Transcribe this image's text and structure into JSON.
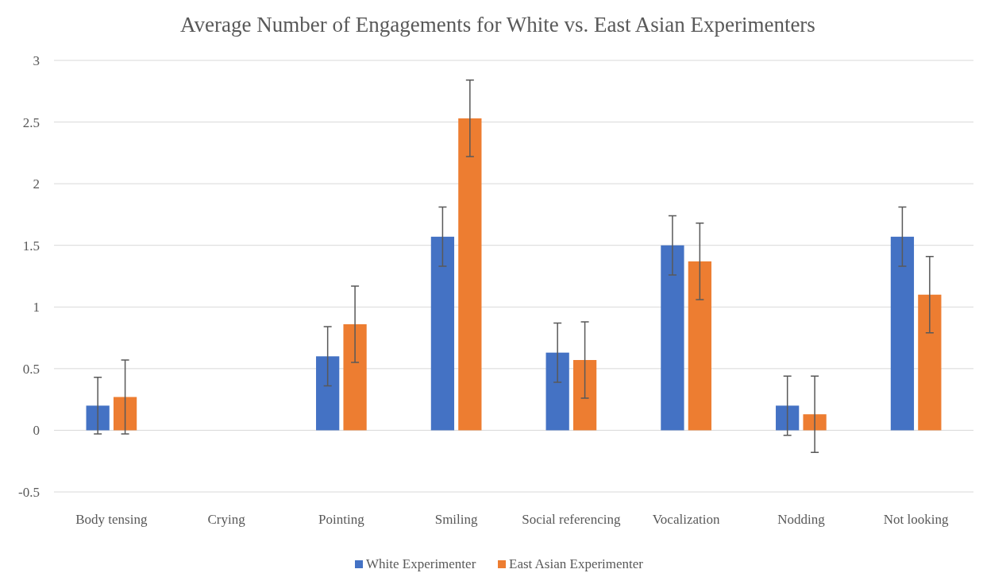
{
  "chart_data": {
    "type": "bar",
    "title": "Average Number of Engagements for White vs. East Asian Experimenters",
    "categories": [
      "Body tensing",
      "Crying",
      "Pointing",
      "Smiling",
      "Social referencing",
      "Vocalization",
      "Nodding",
      "Not looking"
    ],
    "series": [
      {
        "name": "White Experimenter",
        "color": "#4472c4",
        "values": [
          0.2,
          null,
          0.6,
          1.57,
          0.63,
          1.5,
          0.2,
          1.57
        ],
        "errors": [
          0.23,
          null,
          0.24,
          0.24,
          0.24,
          0.24,
          0.24,
          0.24
        ]
      },
      {
        "name": "East Asian Experimenter",
        "color": "#ed7d31",
        "values": [
          0.27,
          null,
          0.86,
          2.53,
          0.57,
          1.37,
          0.13,
          1.1
        ],
        "errors": [
          0.3,
          null,
          0.31,
          0.31,
          0.31,
          0.31,
          0.31,
          0.31
        ]
      }
    ],
    "ylim": [
      -0.5,
      3
    ],
    "yticks": [
      -0.5,
      0,
      0.5,
      1,
      1.5,
      2,
      2.5,
      3
    ],
    "grid": "y",
    "legend": "bottom"
  }
}
